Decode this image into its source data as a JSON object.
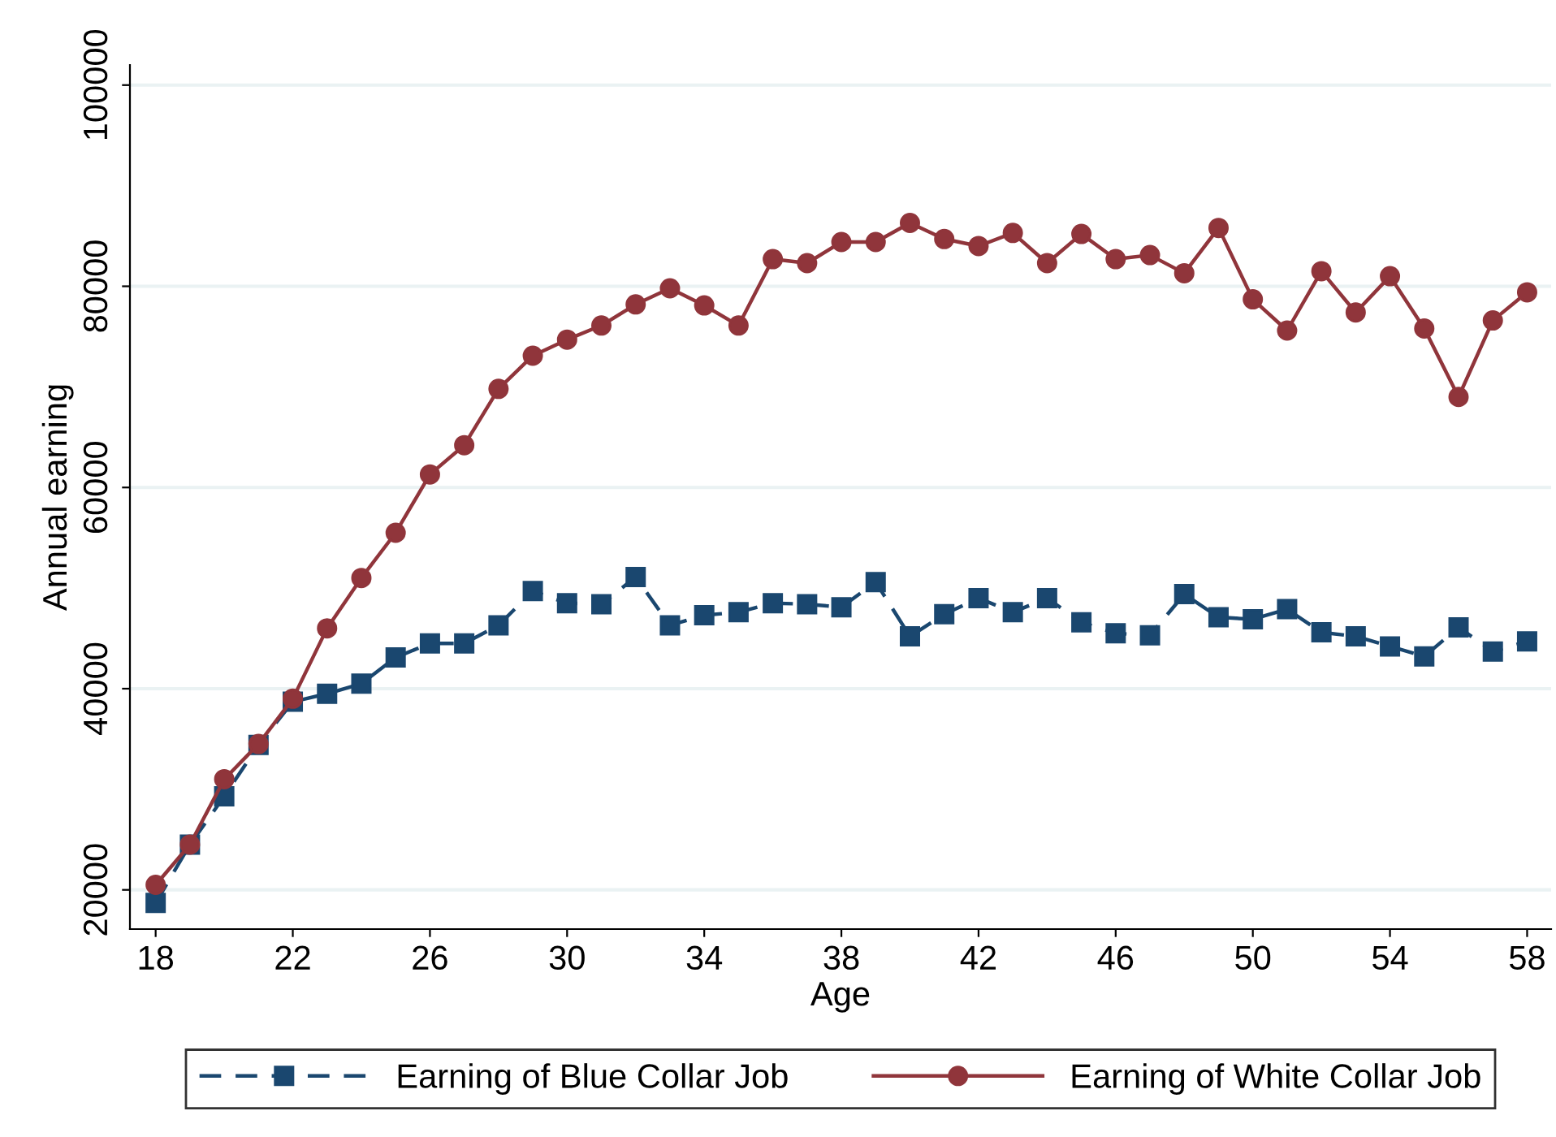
{
  "chart_data": {
    "type": "line",
    "xlabel": "Age",
    "ylabel": "Annual earning",
    "x": [
      18,
      19,
      20,
      21,
      22,
      23,
      24,
      25,
      26,
      27,
      28,
      29,
      30,
      31,
      32,
      33,
      34,
      35,
      36,
      37,
      38,
      39,
      40,
      41,
      42,
      43,
      44,
      45,
      46,
      47,
      48,
      49,
      50,
      51,
      52,
      53,
      54,
      55,
      56,
      57,
      58
    ],
    "series": [
      {
        "name": "Earning of Blue Collar Job",
        "color": "#1a476f",
        "marker": "square",
        "line_style": "dashed",
        "values": [
          18700,
          24500,
          29300,
          34400,
          38700,
          39500,
          40500,
          43100,
          44500,
          44500,
          46300,
          49700,
          48500,
          48400,
          51100,
          46300,
          47300,
          47600,
          48500,
          48400,
          48100,
          50600,
          45200,
          47400,
          49000,
          47600,
          49000,
          46600,
          45500,
          45300,
          49400,
          47100,
          46900,
          47900,
          45600,
          45200,
          44200,
          43200,
          46100,
          43700,
          44700
        ]
      },
      {
        "name": "Earning of White Collar Job",
        "color": "#90353b",
        "marker": "circle",
        "line_style": "solid",
        "values": [
          20500,
          24500,
          31000,
          34500,
          39000,
          46000,
          51000,
          55500,
          61300,
          64200,
          69800,
          73100,
          74700,
          76100,
          78200,
          79800,
          78100,
          76100,
          82700,
          82300,
          84400,
          84400,
          86300,
          84700,
          84000,
          85300,
          82300,
          85200,
          82700,
          83100,
          81300,
          85800,
          78700,
          75600,
          81500,
          77400,
          81000,
          75800,
          69000,
          76600,
          79400
        ]
      }
    ],
    "xlim": [
      17.25,
      58.7
    ],
    "ylim": [
      16100,
      102000
    ],
    "xticks": [
      18,
      22,
      26,
      30,
      34,
      38,
      42,
      46,
      50,
      54,
      58
    ],
    "yticks": [
      20000,
      40000,
      60000,
      80000,
      100000
    ],
    "grid": "y",
    "legend": "bottom"
  }
}
